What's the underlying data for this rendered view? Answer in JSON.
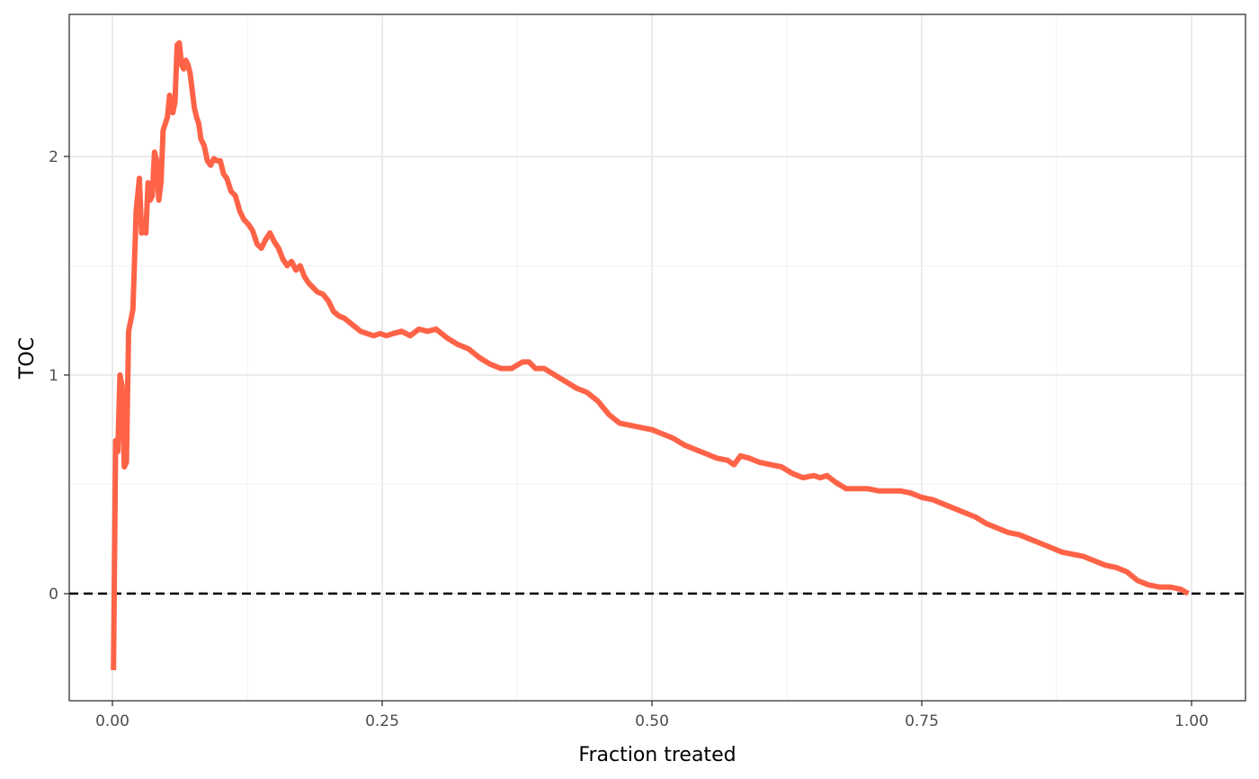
{
  "chart_data": {
    "type": "line",
    "title": "",
    "xlabel": "Fraction treated",
    "ylabel": "TOC",
    "xlim": [
      -0.04,
      1.05
    ],
    "ylim": [
      -0.49,
      2.65
    ],
    "x_ticks": [
      0.0,
      0.25,
      0.5,
      0.75,
      1.0
    ],
    "x_tick_labels": [
      "0.00",
      "0.25",
      "0.50",
      "0.75",
      "1.00"
    ],
    "y_ticks": [
      0,
      1,
      2
    ],
    "y_tick_labels": [
      "0",
      "1",
      "2"
    ],
    "grid": true,
    "legend": "none",
    "reference_line": {
      "y": 0,
      "style": "dashed",
      "color": "#000000"
    },
    "series": [
      {
        "color": "#FF6347",
        "x": [
          0.001,
          0.003,
          0.005,
          0.007,
          0.009,
          0.011,
          0.013,
          0.015,
          0.017,
          0.019,
          0.022,
          0.025,
          0.027,
          0.029,
          0.031,
          0.033,
          0.035,
          0.037,
          0.039,
          0.041,
          0.043,
          0.045,
          0.047,
          0.049,
          0.051,
          0.053,
          0.056,
          0.058,
          0.06,
          0.062,
          0.064,
          0.066,
          0.068,
          0.07,
          0.072,
          0.074,
          0.076,
          0.078,
          0.08,
          0.082,
          0.085,
          0.088,
          0.091,
          0.094,
          0.097,
          0.1,
          0.103,
          0.106,
          0.11,
          0.114,
          0.118,
          0.122,
          0.126,
          0.13,
          0.134,
          0.138,
          0.142,
          0.146,
          0.15,
          0.154,
          0.158,
          0.162,
          0.166,
          0.17,
          0.174,
          0.178,
          0.182,
          0.186,
          0.19,
          0.195,
          0.2,
          0.205,
          0.21,
          0.215,
          0.22,
          0.225,
          0.23,
          0.236,
          0.242,
          0.248,
          0.254,
          0.26,
          0.268,
          0.276,
          0.284,
          0.292,
          0.3,
          0.31,
          0.32,
          0.33,
          0.34,
          0.35,
          0.36,
          0.37,
          0.38,
          0.386,
          0.392,
          0.4,
          0.41,
          0.42,
          0.43,
          0.44,
          0.45,
          0.46,
          0.47,
          0.48,
          0.49,
          0.5,
          0.51,
          0.52,
          0.53,
          0.54,
          0.55,
          0.56,
          0.57,
          0.576,
          0.582,
          0.59,
          0.6,
          0.61,
          0.62,
          0.63,
          0.64,
          0.65,
          0.656,
          0.662,
          0.67,
          0.68,
          0.69,
          0.7,
          0.71,
          0.72,
          0.73,
          0.74,
          0.75,
          0.76,
          0.77,
          0.78,
          0.79,
          0.8,
          0.81,
          0.82,
          0.83,
          0.84,
          0.85,
          0.86,
          0.87,
          0.88,
          0.89,
          0.9,
          0.91,
          0.92,
          0.93,
          0.94,
          0.95,
          0.96,
          0.97,
          0.98,
          0.99,
          0.997
        ],
        "y": [
          -0.35,
          0.7,
          0.65,
          1.0,
          0.95,
          0.58,
          0.6,
          1.2,
          1.25,
          1.3,
          1.75,
          1.9,
          1.65,
          1.7,
          1.65,
          1.88,
          1.8,
          1.82,
          2.02,
          1.98,
          1.8,
          1.88,
          2.12,
          2.15,
          2.18,
          2.28,
          2.2,
          2.25,
          2.51,
          2.52,
          2.42,
          2.4,
          2.44,
          2.42,
          2.38,
          2.3,
          2.22,
          2.18,
          2.15,
          2.08,
          2.05,
          1.98,
          1.96,
          1.99,
          1.98,
          1.98,
          1.92,
          1.9,
          1.84,
          1.82,
          1.75,
          1.71,
          1.69,
          1.66,
          1.6,
          1.58,
          1.62,
          1.65,
          1.61,
          1.58,
          1.53,
          1.5,
          1.52,
          1.48,
          1.5,
          1.45,
          1.42,
          1.4,
          1.38,
          1.37,
          1.34,
          1.29,
          1.27,
          1.26,
          1.24,
          1.22,
          1.2,
          1.19,
          1.18,
          1.19,
          1.18,
          1.19,
          1.2,
          1.18,
          1.21,
          1.2,
          1.21,
          1.17,
          1.14,
          1.12,
          1.08,
          1.05,
          1.03,
          1.03,
          1.06,
          1.06,
          1.03,
          1.03,
          1.0,
          0.97,
          0.94,
          0.92,
          0.88,
          0.82,
          0.78,
          0.77,
          0.76,
          0.75,
          0.73,
          0.71,
          0.68,
          0.66,
          0.64,
          0.62,
          0.61,
          0.59,
          0.63,
          0.62,
          0.6,
          0.59,
          0.58,
          0.55,
          0.53,
          0.54,
          0.53,
          0.54,
          0.51,
          0.48,
          0.48,
          0.48,
          0.47,
          0.47,
          0.47,
          0.46,
          0.44,
          0.43,
          0.41,
          0.39,
          0.37,
          0.35,
          0.32,
          0.3,
          0.28,
          0.27,
          0.25,
          0.23,
          0.21,
          0.19,
          0.18,
          0.17,
          0.15,
          0.13,
          0.12,
          0.1,
          0.06,
          0.04,
          0.03,
          0.03,
          0.02,
          0.0
        ]
      }
    ]
  }
}
